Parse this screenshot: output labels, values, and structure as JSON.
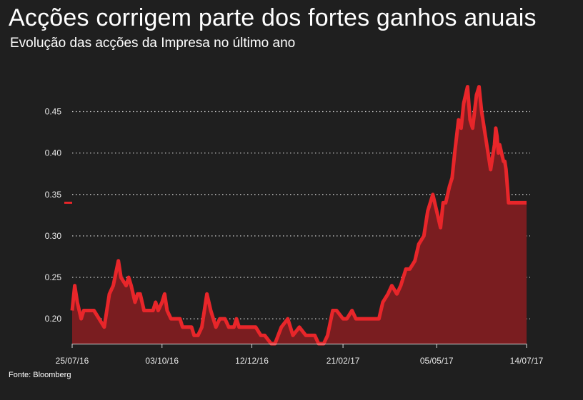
{
  "title": "Acções corrigem parte dos fortes ganhos anuais",
  "subtitle": "Evolução das acções da Impresa no último ano",
  "source": "Fonte: Bloomberg",
  "colors": {
    "background": "#1f1f1f",
    "line": "#e8262a",
    "area": "#7a1d20",
    "grid": "#cfcfcf",
    "text": "#ffffff"
  },
  "chart_data": {
    "type": "area",
    "title": "Acções corrigem parte dos fortes ganhos anuais",
    "xlabel": "",
    "ylabel": "",
    "ylim": [
      0.17,
      0.49
    ],
    "y_ticks": [
      0.2,
      0.25,
      0.3,
      0.35,
      0.4,
      0.45
    ],
    "y_tick_labels": [
      "0.20",
      "0.25",
      "0.30",
      "0.35",
      "0.40",
      "0.45"
    ],
    "x_ticks": [
      {
        "date": "2016-07-25",
        "label": "25/07/16"
      },
      {
        "date": "2016-10-03",
        "label": "03/10/16"
      },
      {
        "date": "2016-12-12",
        "label": "12/12/16"
      },
      {
        "date": "2017-02-21",
        "label": "21/02/17"
      },
      {
        "date": "2017-05-05",
        "label": "05/05/17"
      },
      {
        "date": "2017-07-14",
        "label": "14/07/17"
      }
    ],
    "xlim": [
      "2016-07-25",
      "2017-07-14"
    ],
    "grid": "horizontal dotted",
    "legend": "none",
    "last_value_marker": 0.34,
    "series": [
      {
        "x": [
          "2016-07-25",
          "2016-07-27",
          "2016-07-29",
          "2016-08-01",
          "2016-08-03",
          "2016-08-05",
          "2016-08-08",
          "2016-08-11",
          "2016-08-15",
          "2016-08-19",
          "2016-08-23",
          "2016-08-26",
          "2016-08-30",
          "2016-09-01",
          "2016-09-05",
          "2016-09-07",
          "2016-09-09",
          "2016-09-12",
          "2016-09-14",
          "2016-09-16",
          "2016-09-19",
          "2016-09-21",
          "2016-09-23",
          "2016-09-26",
          "2016-09-28",
          "2016-09-30",
          "2016-10-03",
          "2016-10-05",
          "2016-10-07",
          "2016-10-10",
          "2016-10-12",
          "2016-10-14",
          "2016-10-17",
          "2016-10-19",
          "2016-10-21",
          "2016-10-24",
          "2016-10-26",
          "2016-10-28",
          "2016-10-31",
          "2016-11-03",
          "2016-11-07",
          "2016-11-10",
          "2016-11-14",
          "2016-11-17",
          "2016-11-21",
          "2016-11-24",
          "2016-11-28",
          "2016-11-30",
          "2016-12-02",
          "2016-12-05",
          "2016-12-07",
          "2016-12-09",
          "2016-12-12",
          "2016-12-15",
          "2016-12-19",
          "2016-12-22",
          "2016-12-27",
          "2016-12-30",
          "2017-01-04",
          "2017-01-09",
          "2017-01-13",
          "2017-01-18",
          "2017-01-23",
          "2017-01-26",
          "2017-01-30",
          "2017-02-02",
          "2017-02-06",
          "2017-02-09",
          "2017-02-13",
          "2017-02-16",
          "2017-02-21",
          "2017-02-24",
          "2017-02-28",
          "2017-03-03",
          "2017-03-07",
          "2017-03-10",
          "2017-03-14",
          "2017-03-17",
          "2017-03-21",
          "2017-03-24",
          "2017-03-28",
          "2017-03-31",
          "2017-04-04",
          "2017-04-07",
          "2017-04-11",
          "2017-04-14",
          "2017-04-18",
          "2017-04-21",
          "2017-04-25",
          "2017-04-28",
          "2017-05-02",
          "2017-05-05",
          "2017-05-08",
          "2017-05-10",
          "2017-05-12",
          "2017-05-15",
          "2017-05-17",
          "2017-05-19",
          "2017-05-22",
          "2017-05-24",
          "2017-05-26",
          "2017-05-29",
          "2017-05-31",
          "2017-06-02",
          "2017-06-05",
          "2017-06-07",
          "2017-06-09",
          "2017-06-12",
          "2017-06-14",
          "2017-06-16",
          "2017-06-19",
          "2017-06-20",
          "2017-06-21",
          "2017-06-22",
          "2017-06-23",
          "2017-06-26",
          "2017-06-27",
          "2017-06-28",
          "2017-06-29",
          "2017-06-30",
          "2017-07-03",
          "2017-07-04",
          "2017-07-05",
          "2017-07-06",
          "2017-07-07",
          "2017-07-10",
          "2017-07-11",
          "2017-07-12",
          "2017-07-13",
          "2017-07-14"
        ],
        "values": [
          0.21,
          0.24,
          0.22,
          0.2,
          0.21,
          0.21,
          0.21,
          0.21,
          0.2,
          0.19,
          0.23,
          0.24,
          0.27,
          0.25,
          0.24,
          0.25,
          0.24,
          0.22,
          0.23,
          0.23,
          0.21,
          0.21,
          0.21,
          0.21,
          0.22,
          0.21,
          0.22,
          0.23,
          0.21,
          0.2,
          0.2,
          0.2,
          0.2,
          0.19,
          0.19,
          0.19,
          0.19,
          0.18,
          0.18,
          0.19,
          0.23,
          0.21,
          0.19,
          0.2,
          0.2,
          0.19,
          0.19,
          0.2,
          0.19,
          0.19,
          0.19,
          0.19,
          0.19,
          0.19,
          0.18,
          0.18,
          0.17,
          0.17,
          0.19,
          0.2,
          0.18,
          0.19,
          0.18,
          0.18,
          0.18,
          0.17,
          0.17,
          0.18,
          0.21,
          0.21,
          0.2,
          0.2,
          0.21,
          0.2,
          0.2,
          0.2,
          0.2,
          0.2,
          0.2,
          0.22,
          0.23,
          0.24,
          0.23,
          0.24,
          0.26,
          0.26,
          0.27,
          0.29,
          0.3,
          0.33,
          0.35,
          0.33,
          0.31,
          0.34,
          0.34,
          0.36,
          0.37,
          0.4,
          0.44,
          0.43,
          0.46,
          0.48,
          0.44,
          0.43,
          0.47,
          0.48,
          0.45,
          0.42,
          0.4,
          0.38,
          0.41,
          0.43,
          0.42,
          0.4,
          0.41,
          0.39,
          0.39,
          0.38,
          0.36,
          0.34,
          0.34,
          0.34,
          0.34,
          0.34,
          0.34,
          0.34,
          0.34,
          0.34,
          0.34,
          0.34
        ]
      }
    ]
  }
}
